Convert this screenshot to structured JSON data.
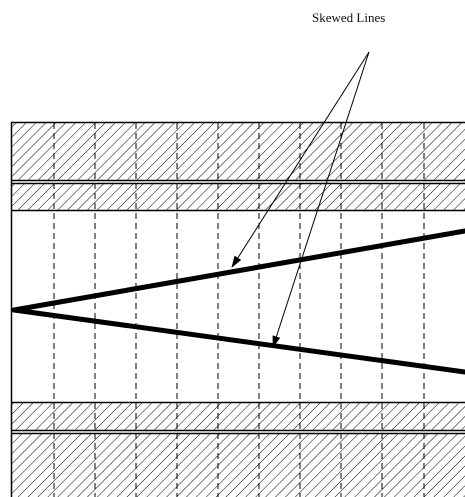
{
  "annotation": {
    "label": "Skewed Lines"
  },
  "colors": {
    "line": "#000000",
    "background": "#ffffff"
  }
}
